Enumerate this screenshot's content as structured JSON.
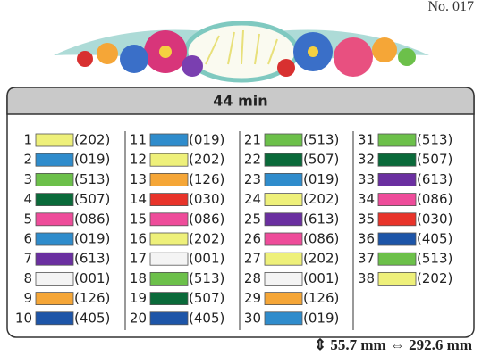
{
  "header": {
    "design_number": "No. 017"
  },
  "table": {
    "time": "44 min",
    "columns": [
      [
        {
          "number": "1",
          "code": "(202)",
          "color": "#eef07a"
        },
        {
          "number": "2",
          "code": "(019)",
          "color": "#2f8ccc"
        },
        {
          "number": "3",
          "code": "(513)",
          "color": "#6cc04a"
        },
        {
          "number": "4",
          "code": "(507)",
          "color": "#0a6a3a"
        },
        {
          "number": "5",
          "code": "(086)",
          "color": "#ee4c9a"
        },
        {
          "number": "6",
          "code": "(019)",
          "color": "#2f8ccc"
        },
        {
          "number": "7",
          "code": "(613)",
          "color": "#6a2fa0"
        },
        {
          "number": "8",
          "code": "(001)",
          "color": "#f4f4f4"
        },
        {
          "number": "9",
          "code": "(126)",
          "color": "#f5a637"
        },
        {
          "number": "10",
          "code": "(405)",
          "color": "#1d55a8"
        }
      ],
      [
        {
          "number": "11",
          "code": "(019)",
          "color": "#2f8ccc"
        },
        {
          "number": "12",
          "code": "(202)",
          "color": "#eef07a"
        },
        {
          "number": "13",
          "code": "(126)",
          "color": "#f5a637"
        },
        {
          "number": "14",
          "code": "(030)",
          "color": "#e8332a"
        },
        {
          "number": "15",
          "code": "(086)",
          "color": "#ee4c9a"
        },
        {
          "number": "16",
          "code": "(202)",
          "color": "#eef07a"
        },
        {
          "number": "17",
          "code": "(001)",
          "color": "#f4f4f4"
        },
        {
          "number": "18",
          "code": "(513)",
          "color": "#6cc04a"
        },
        {
          "number": "19",
          "code": "(507)",
          "color": "#0a6a3a"
        },
        {
          "number": "20",
          "code": "(405)",
          "color": "#1d55a8"
        }
      ],
      [
        {
          "number": "21",
          "code": "(513)",
          "color": "#6cc04a"
        },
        {
          "number": "22",
          "code": "(507)",
          "color": "#0a6a3a"
        },
        {
          "number": "23",
          "code": "(019)",
          "color": "#2f8ccc"
        },
        {
          "number": "24",
          "code": "(202)",
          "color": "#eef07a"
        },
        {
          "number": "25",
          "code": "(613)",
          "color": "#6a2fa0"
        },
        {
          "number": "26",
          "code": "(086)",
          "color": "#ee4c9a"
        },
        {
          "number": "27",
          "code": "(202)",
          "color": "#eef07a"
        },
        {
          "number": "28",
          "code": "(001)",
          "color": "#f4f4f4"
        },
        {
          "number": "29",
          "code": "(126)",
          "color": "#f5a637"
        },
        {
          "number": "30",
          "code": "(019)",
          "color": "#2f8ccc"
        }
      ],
      [
        {
          "number": "31",
          "code": "(513)",
          "color": "#6cc04a"
        },
        {
          "number": "32",
          "code": "(507)",
          "color": "#0a6a3a"
        },
        {
          "number": "33",
          "code": "(613)",
          "color": "#6a2fa0"
        },
        {
          "number": "34",
          "code": "(086)",
          "color": "#ee4c9a"
        },
        {
          "number": "35",
          "code": "(030)",
          "color": "#e8332a"
        },
        {
          "number": "36",
          "code": "(405)",
          "color": "#1d55a8"
        },
        {
          "number": "37",
          "code": "(513)",
          "color": "#6cc04a"
        },
        {
          "number": "38",
          "code": "(202)",
          "color": "#eef07a"
        }
      ]
    ]
  },
  "footer": {
    "size": "⇕ 55.7 mm ⇔ 292.6 mm"
  }
}
